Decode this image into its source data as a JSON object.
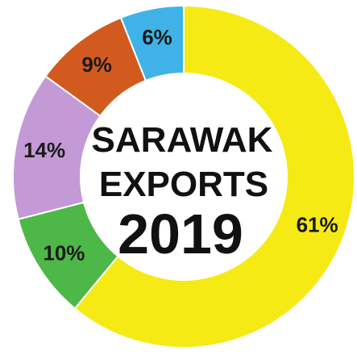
{
  "chart_data": {
    "type": "pie",
    "style": "donut",
    "title_lines": [
      "SARAWAK",
      "EXPORTS"
    ],
    "year": "2019",
    "slices": [
      {
        "value": 61,
        "label": "61%",
        "color": "#f5ea14"
      },
      {
        "value": 10,
        "label": "10%",
        "color": "#4db848"
      },
      {
        "value": 14,
        "label": "14%",
        "color": "#c39ad6"
      },
      {
        "value": 9,
        "label": "9%",
        "color": "#d35a1e"
      },
      {
        "value": 6,
        "label": "6%",
        "color": "#3fb3e8"
      }
    ]
  }
}
